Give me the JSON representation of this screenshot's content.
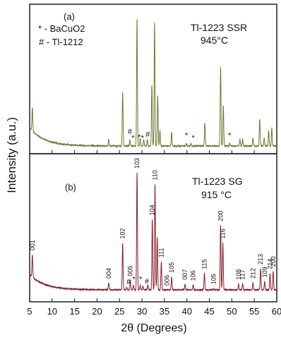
{
  "figure": {
    "ylabel": "Intensity (a.u.)",
    "xlabel": "2θ (Degrees)"
  },
  "chart_data": [
    {
      "type": "line",
      "panel": "(a)",
      "title": "Tl-1223 SSR",
      "subtitle": "945°C",
      "legend": [
        "* - BaCuO2",
        "# - Tl-1212"
      ],
      "line_color": "#6b7a33",
      "xlim": [
        5,
        60
      ],
      "x_ticks": [
        5,
        10,
        15,
        20,
        25,
        30,
        35,
        40,
        45,
        50,
        55,
        60
      ],
      "peaks": [
        {
          "x": 5.6,
          "h": 0.18
        },
        {
          "x": 22.6,
          "h": 0.05
        },
        {
          "x": 25.7,
          "h": 0.42
        },
        {
          "x": 27.3,
          "h": 0.05
        },
        {
          "x": 28.9,
          "h": 1.0
        },
        {
          "x": 29.6,
          "h": 0.06
        },
        {
          "x": 30.4,
          "h": 0.05
        },
        {
          "x": 31.2,
          "h": 0.05
        },
        {
          "x": 32.2,
          "h": 0.48
        },
        {
          "x": 32.8,
          "h": 0.97
        },
        {
          "x": 33.5,
          "h": 0.4
        },
        {
          "x": 34.0,
          "h": 0.12
        },
        {
          "x": 36.6,
          "h": 0.11
        },
        {
          "x": 39.9,
          "h": 0.02
        },
        {
          "x": 40.9,
          "h": 0.02
        },
        {
          "x": 44.0,
          "h": 0.18
        },
        {
          "x": 47.5,
          "h": 0.62
        },
        {
          "x": 48.1,
          "h": 0.32
        },
        {
          "x": 49.5,
          "h": 0.02
        },
        {
          "x": 51.8,
          "h": 0.05
        },
        {
          "x": 52.4,
          "h": 0.05
        },
        {
          "x": 54.7,
          "h": 0.06
        },
        {
          "x": 56.2,
          "h": 0.21
        },
        {
          "x": 57.2,
          "h": 0.06
        },
        {
          "x": 58.2,
          "h": 0.12
        },
        {
          "x": 58.9,
          "h": 0.14
        }
      ],
      "markers": [
        {
          "x": 27.3,
          "label": "#"
        },
        {
          "x": 28.0,
          "label": "*"
        },
        {
          "x": 29.4,
          "label": "*"
        },
        {
          "x": 30.1,
          "label": "*"
        },
        {
          "x": 31.3,
          "label": "#"
        },
        {
          "x": 39.9,
          "label": "*"
        },
        {
          "x": 41.4,
          "label": "*"
        },
        {
          "x": 49.5,
          "label": "*"
        }
      ]
    },
    {
      "type": "line",
      "panel": "(b)",
      "title": "Tl-1223 SG",
      "subtitle": "915 °C",
      "line_color": "#8a1f2b",
      "xlim": [
        5,
        60
      ],
      "x_ticks": [
        5,
        10,
        15,
        20,
        25,
        30,
        35,
        40,
        45,
        50,
        55,
        60
      ],
      "peaks": [
        {
          "x": 5.6,
          "h": 0.19
        },
        {
          "x": 22.6,
          "h": 0.06
        },
        {
          "x": 25.7,
          "h": 0.4
        },
        {
          "x": 26.6,
          "h": 0.02
        },
        {
          "x": 27.4,
          "h": 0.08
        },
        {
          "x": 28.1,
          "h": 0.04
        },
        {
          "x": 28.9,
          "h": 1.0
        },
        {
          "x": 29.6,
          "h": 0.04
        },
        {
          "x": 30.2,
          "h": 0.03
        },
        {
          "x": 31.3,
          "h": 0.04
        },
        {
          "x": 32.3,
          "h": 0.6
        },
        {
          "x": 32.9,
          "h": 0.9
        },
        {
          "x": 33.4,
          "h": 0.45
        },
        {
          "x": 34.3,
          "h": 0.24
        },
        {
          "x": 36.6,
          "h": 0.11
        },
        {
          "x": 39.6,
          "h": 0.05
        },
        {
          "x": 41.4,
          "h": 0.04
        },
        {
          "x": 43.9,
          "h": 0.14
        },
        {
          "x": 45.9,
          "h": 0.01
        },
        {
          "x": 47.5,
          "h": 0.55
        },
        {
          "x": 48.0,
          "h": 0.4
        },
        {
          "x": 51.5,
          "h": 0.05
        },
        {
          "x": 52.4,
          "h": 0.05
        },
        {
          "x": 54.7,
          "h": 0.06
        },
        {
          "x": 56.4,
          "h": 0.18
        },
        {
          "x": 57.3,
          "h": 0.07
        },
        {
          "x": 58.5,
          "h": 0.14
        },
        {
          "x": 59.2,
          "h": 0.16
        }
      ],
      "peak_labels": [
        {
          "x": 5.6,
          "label": "001"
        },
        {
          "x": 22.6,
          "label": "004"
        },
        {
          "x": 25.7,
          "label": "102"
        },
        {
          "x": 27.4,
          "label": "005"
        },
        {
          "x": 28.9,
          "label": "103"
        },
        {
          "x": 32.3,
          "label": "104"
        },
        {
          "x": 32.9,
          "label": "110"
        },
        {
          "x": 34.3,
          "label": "111"
        },
        {
          "x": 35.6,
          "label": "006"
        },
        {
          "x": 36.6,
          "label": "105"
        },
        {
          "x": 39.6,
          "label": "007"
        },
        {
          "x": 41.4,
          "label": "106"
        },
        {
          "x": 43.9,
          "label": "115"
        },
        {
          "x": 45.9,
          "label": "105"
        },
        {
          "x": 47.5,
          "label": "200"
        },
        {
          "x": 48.0,
          "label": "116"
        },
        {
          "x": 51.5,
          "label": "108"
        },
        {
          "x": 52.4,
          "label": "117"
        },
        {
          "x": 54.7,
          "label": "212"
        },
        {
          "x": 56.4,
          "label": "213"
        },
        {
          "x": 57.3,
          "label": "109"
        },
        {
          "x": 58.5,
          "label": "214"
        },
        {
          "x": 59.2,
          "label": "200"
        }
      ],
      "markers": [
        {
          "x": 27.0,
          "label": "#"
        },
        {
          "x": 28.2,
          "label": "*"
        },
        {
          "x": 29.7,
          "label": "*"
        },
        {
          "x": 31.1,
          "label": "#"
        }
      ]
    }
  ]
}
